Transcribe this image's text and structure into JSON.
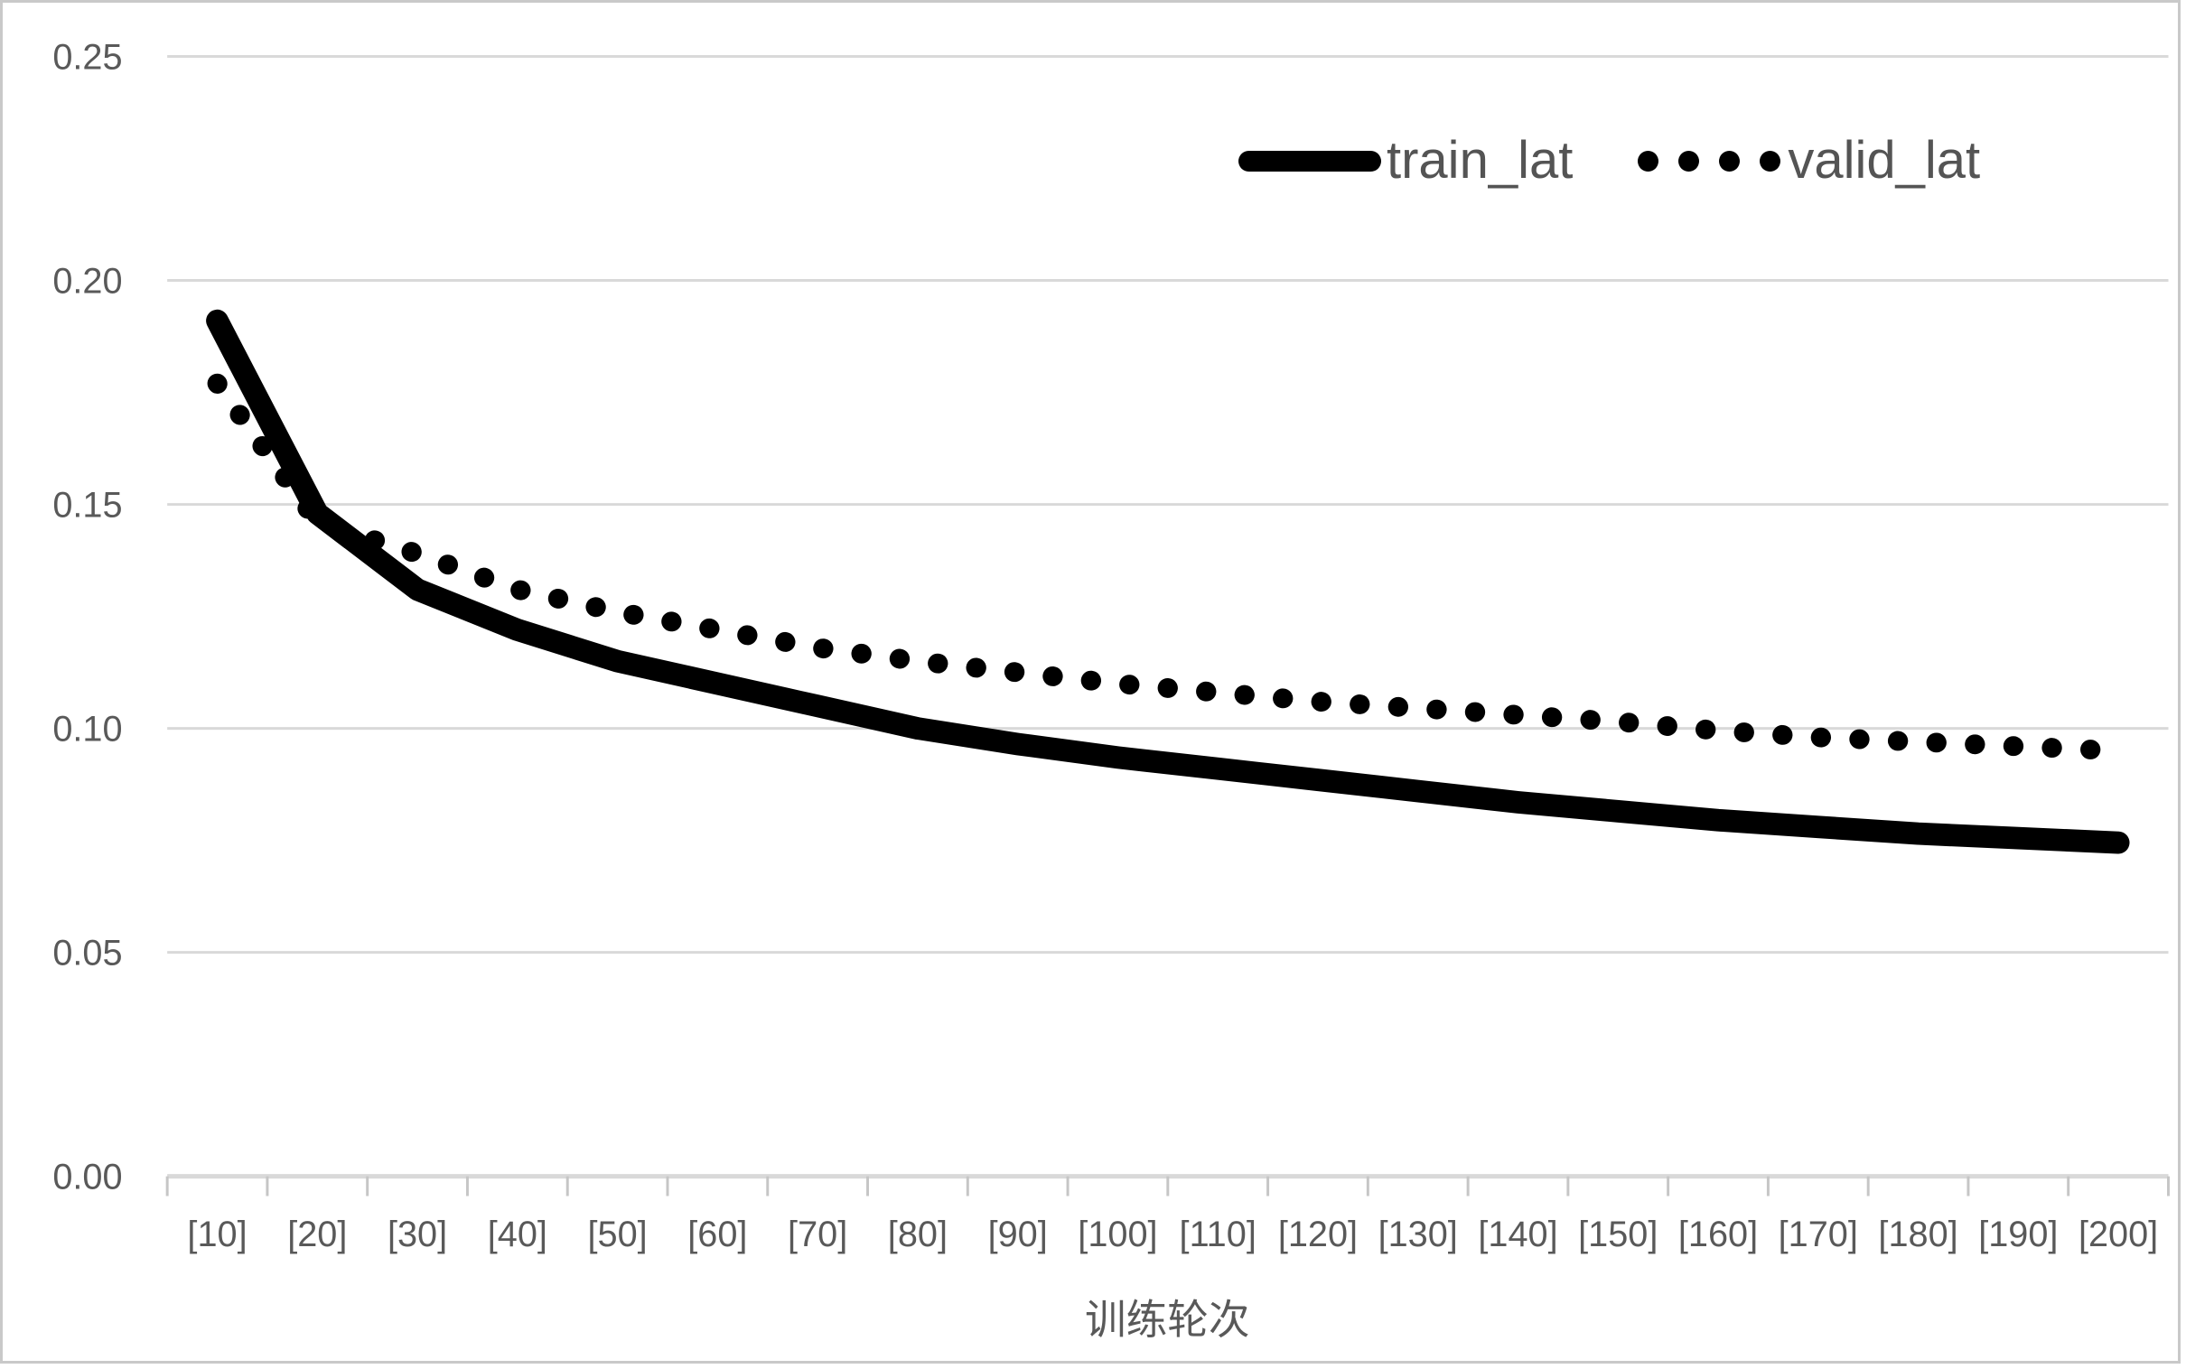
{
  "chart_data": {
    "type": "line",
    "title": "",
    "categories": [
      "[10]",
      "[20]",
      "[30]",
      "[40]",
      "[50]",
      "[60]",
      "[70]",
      "[80]",
      "[90]",
      "[100]",
      "[110]",
      "[120]",
      "[130]",
      "[140]",
      "[150]",
      "[160]",
      "[170]",
      "[180]",
      "[190]",
      "[200]"
    ],
    "series": [
      {
        "name": "train_lat",
        "style": "solid",
        "color": "#000000",
        "values": [
          0.191,
          0.148,
          0.131,
          0.122,
          0.115,
          0.11,
          0.105,
          0.1,
          0.0965,
          0.0935,
          0.091,
          0.0885,
          0.086,
          0.0835,
          0.0815,
          0.0795,
          0.078,
          0.0765,
          0.0755,
          0.0745
        ]
      },
      {
        "name": "valid_lat",
        "style": "dotted",
        "color": "#000000",
        "values": [
          0.177,
          0.146,
          0.139,
          0.131,
          0.126,
          0.122,
          0.118,
          0.115,
          0.1125,
          0.11,
          0.108,
          0.106,
          0.1045,
          0.103,
          0.1015,
          0.0995,
          0.098,
          0.097,
          0.096,
          0.095
        ]
      }
    ],
    "xlabel": "训练轮次",
    "ylabel": "",
    "ylim": [
      0,
      0.25
    ],
    "y_ticks": [
      "0.00",
      "0.05",
      "0.10",
      "0.15",
      "0.20",
      "0.25"
    ],
    "y_tick_values": [
      0,
      0.05,
      0.1,
      0.15,
      0.2,
      0.25
    ],
    "grid": true,
    "legend_position": "top-right"
  },
  "colors": {
    "gridline": "#d9d9d9",
    "axis_line": "#d9d9d9",
    "tick_mark": "#c6c6c6",
    "axis_label": "#595959",
    "legend_text": "#545454",
    "series": "#000000",
    "background": "#ffffff",
    "frame_border": "#c9c9c9"
  }
}
